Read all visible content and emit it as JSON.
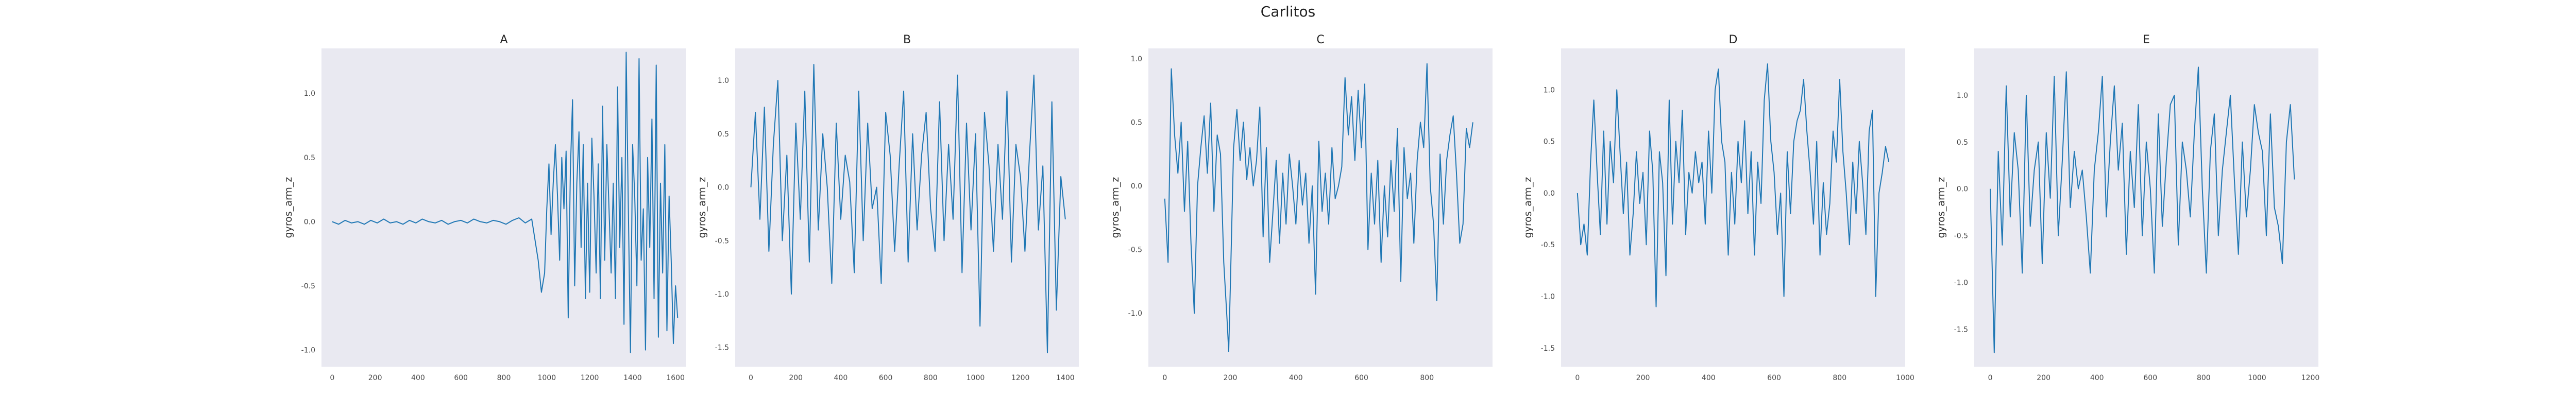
{
  "figure": {
    "title": "Carlitos",
    "colors": {
      "line": "#1f77b4",
      "plot_background": "#e9e9f1",
      "page_background": "#ffffff"
    }
  },
  "chart_data": [
    {
      "type": "line",
      "title": "A",
      "xlabel": "",
      "ylabel": "gyros_arm_z",
      "xlim": [
        -50,
        1650
      ],
      "ylim": [
        -1.13,
        1.35
      ],
      "xticks": [
        0,
        200,
        400,
        600,
        800,
        1000,
        1200,
        1400,
        1600
      ],
      "yticks": [
        -1.0,
        -0.5,
        0.0,
        0.5,
        1.0
      ],
      "grid": false,
      "series": [
        {
          "x": [
            0,
            30,
            60,
            90,
            120,
            150,
            180,
            210,
            240,
            270,
            300,
            330,
            360,
            390,
            420,
            450,
            480,
            510,
            540,
            570,
            600,
            630,
            660,
            690,
            720,
            750,
            780,
            810,
            840,
            870,
            900,
            930,
            960,
            975,
            990,
            1000,
            1010,
            1020,
            1030,
            1040,
            1050,
            1060,
            1070,
            1080,
            1090,
            1100,
            1110,
            1120,
            1130,
            1140,
            1150,
            1160,
            1170,
            1180,
            1190,
            1200,
            1210,
            1220,
            1230,
            1240,
            1250,
            1260,
            1270,
            1280,
            1290,
            1300,
            1310,
            1320,
            1330,
            1340,
            1350,
            1360,
            1370,
            1380,
            1390,
            1400,
            1410,
            1420,
            1430,
            1440,
            1450,
            1460,
            1470,
            1480,
            1490,
            1500,
            1510,
            1520,
            1530,
            1540,
            1550,
            1560,
            1570,
            1580,
            1590,
            1600,
            1610
          ],
          "y": [
            0.0,
            -0.02,
            0.01,
            -0.01,
            0.0,
            -0.02,
            0.01,
            -0.01,
            0.02,
            -0.01,
            0.0,
            -0.02,
            0.01,
            -0.01,
            0.02,
            0.0,
            -0.01,
            0.01,
            -0.02,
            0.0,
            0.01,
            -0.01,
            0.02,
            0.0,
            -0.01,
            0.01,
            0.0,
            -0.02,
            0.01,
            0.03,
            -0.01,
            0.02,
            -0.3,
            -0.55,
            -0.4,
            0.1,
            0.45,
            -0.1,
            0.3,
            0.6,
            0.2,
            -0.3,
            0.5,
            0.1,
            0.55,
            -0.75,
            0.4,
            0.95,
            -0.5,
            0.3,
            0.7,
            -0.2,
            0.6,
            -0.6,
            0.3,
            -0.55,
            0.65,
            0.2,
            -0.4,
            0.45,
            -0.6,
            0.9,
            -0.3,
            0.6,
            0.1,
            -0.4,
            0.3,
            -0.6,
            1.05,
            -0.2,
            0.5,
            -0.8,
            1.32,
            0.1,
            -1.02,
            0.6,
            0.2,
            -0.5,
            1.27,
            -0.3,
            0.1,
            -1.0,
            0.5,
            -0.2,
            0.8,
            -0.6,
            1.22,
            -0.9,
            0.3,
            -0.4,
            0.6,
            -0.85,
            0.2,
            -0.3,
            -0.95,
            -0.5,
            -0.75
          ]
        }
      ]
    },
    {
      "type": "line",
      "title": "B",
      "xlabel": "",
      "ylabel": "gyros_arm_z",
      "xlim": [
        -70,
        1460
      ],
      "ylim": [
        -1.68,
        1.3
      ],
      "xticks": [
        0,
        200,
        400,
        600,
        800,
        1000,
        1200,
        1400
      ],
      "yticks": [
        -1.5,
        -1.0,
        -0.5,
        0.0,
        0.5,
        1.0
      ],
      "grid": false,
      "series": [
        {
          "x": [
            0,
            20,
            40,
            60,
            80,
            100,
            120,
            140,
            160,
            180,
            200,
            220,
            240,
            260,
            280,
            300,
            320,
            340,
            360,
            380,
            400,
            420,
            440,
            460,
            480,
            500,
            520,
            540,
            560,
            580,
            600,
            620,
            640,
            660,
            680,
            700,
            720,
            740,
            760,
            780,
            800,
            820,
            840,
            860,
            880,
            900,
            920,
            940,
            960,
            980,
            1000,
            1020,
            1040,
            1060,
            1080,
            1100,
            1120,
            1140,
            1160,
            1180,
            1200,
            1220,
            1240,
            1260,
            1280,
            1300,
            1320,
            1340,
            1360,
            1380,
            1400
          ],
          "y": [
            0.0,
            0.7,
            -0.3,
            0.75,
            -0.6,
            0.4,
            1.0,
            -0.5,
            0.3,
            -1.0,
            0.6,
            -0.3,
            0.9,
            -0.7,
            1.15,
            -0.4,
            0.5,
            0.0,
            -0.9,
            0.6,
            -0.3,
            0.3,
            0.05,
            -0.8,
            0.9,
            -0.5,
            0.6,
            -0.2,
            0.0,
            -0.9,
            0.7,
            0.3,
            -0.6,
            0.2,
            0.9,
            -0.7,
            0.5,
            -0.4,
            0.3,
            0.7,
            -0.2,
            -0.6,
            0.8,
            -0.5,
            0.4,
            -0.3,
            1.05,
            -0.8,
            0.6,
            -0.4,
            0.5,
            -1.3,
            0.7,
            0.2,
            -0.6,
            0.4,
            -0.3,
            0.9,
            -0.7,
            0.4,
            0.1,
            -0.6,
            0.3,
            1.05,
            -0.4,
            0.2,
            -1.55,
            0.8,
            -1.15,
            0.1,
            -0.3
          ]
        }
      ]
    },
    {
      "type": "line",
      "title": "C",
      "xlabel": "",
      "ylabel": "gyros_arm_z",
      "xlim": [
        -50,
        1000
      ],
      "ylim": [
        -1.42,
        1.08
      ],
      "xticks": [
        0,
        200,
        400,
        600,
        800
      ],
      "yticks": [
        -1.0,
        -0.5,
        0.0,
        0.5,
        1.0
      ],
      "grid": false,
      "series": [
        {
          "x": [
            0,
            10,
            20,
            30,
            40,
            50,
            60,
            70,
            80,
            90,
            100,
            110,
            120,
            130,
            140,
            150,
            160,
            170,
            180,
            190,
            195,
            200,
            210,
            220,
            230,
            240,
            250,
            260,
            270,
            280,
            290,
            300,
            310,
            320,
            330,
            340,
            350,
            360,
            370,
            380,
            390,
            400,
            410,
            420,
            430,
            440,
            450,
            460,
            470,
            480,
            490,
            500,
            510,
            520,
            530,
            540,
            550,
            560,
            570,
            580,
            590,
            600,
            610,
            620,
            630,
            640,
            650,
            660,
            670,
            680,
            690,
            700,
            710,
            720,
            730,
            740,
            750,
            760,
            770,
            780,
            790,
            800,
            810,
            820,
            830,
            840,
            850,
            860,
            870,
            880,
            890,
            900,
            910,
            920,
            930,
            940
          ],
          "y": [
            -0.1,
            -0.6,
            0.92,
            0.4,
            0.1,
            0.5,
            -0.2,
            0.35,
            -0.45,
            -1.0,
            0.0,
            0.3,
            0.55,
            0.1,
            0.65,
            -0.2,
            0.4,
            0.25,
            -0.6,
            -1.05,
            -1.3,
            -0.8,
            0.3,
            0.6,
            0.2,
            0.5,
            0.05,
            0.3,
            0.0,
            0.2,
            0.62,
            -0.4,
            0.3,
            -0.6,
            -0.2,
            0.2,
            -0.45,
            0.1,
            -0.3,
            0.25,
            0.0,
            -0.3,
            0.2,
            -0.15,
            0.1,
            -0.45,
            0.0,
            -0.85,
            0.35,
            -0.2,
            0.1,
            -0.3,
            0.3,
            -0.1,
            0.0,
            0.15,
            0.85,
            0.4,
            0.7,
            0.2,
            0.75,
            0.3,
            0.8,
            -0.5,
            0.1,
            -0.3,
            0.2,
            -0.6,
            0.0,
            -0.4,
            0.2,
            -0.2,
            0.45,
            -0.75,
            0.3,
            -0.1,
            0.1,
            -0.45,
            0.2,
            0.5,
            0.3,
            0.96,
            0.0,
            -0.3,
            -0.9,
            0.25,
            -0.3,
            0.2,
            0.4,
            0.55,
            0.1,
            -0.45,
            -0.3,
            0.45,
            0.3,
            0.5
          ]
        }
      ]
    },
    {
      "type": "line",
      "title": "D",
      "xlabel": "",
      "ylabel": "gyros_arm_z",
      "xlim": [
        -50,
        1000
      ],
      "ylim": [
        -1.68,
        1.4
      ],
      "xticks": [
        0,
        200,
        400,
        600,
        800,
        1000
      ],
      "yticks": [
        -1.5,
        -1.0,
        -0.5,
        0.0,
        0.5,
        1.0
      ],
      "grid": false,
      "series": [
        {
          "x": [
            0,
            10,
            20,
            30,
            40,
            50,
            60,
            70,
            80,
            90,
            100,
            110,
            120,
            130,
            140,
            150,
            160,
            170,
            180,
            190,
            200,
            210,
            220,
            230,
            240,
            250,
            260,
            270,
            280,
            290,
            300,
            310,
            320,
            330,
            340,
            350,
            360,
            370,
            380,
            390,
            400,
            410,
            420,
            430,
            440,
            450,
            460,
            470,
            480,
            490,
            500,
            510,
            520,
            530,
            540,
            550,
            560,
            570,
            580,
            590,
            600,
            610,
            620,
            630,
            640,
            650,
            660,
            670,
            680,
            690,
            700,
            710,
            720,
            730,
            740,
            750,
            760,
            770,
            780,
            790,
            800,
            810,
            820,
            830,
            840,
            850,
            860,
            870,
            880,
            890,
            900,
            910,
            920,
            930,
            940,
            950
          ],
          "y": [
            0.0,
            -0.5,
            -0.3,
            -0.6,
            0.3,
            0.9,
            0.2,
            -0.4,
            0.6,
            -0.3,
            0.5,
            0.1,
            1.0,
            0.4,
            -0.2,
            0.3,
            -0.6,
            -0.2,
            0.4,
            -0.1,
            0.2,
            -0.5,
            0.6,
            0.2,
            -1.1,
            0.4,
            0.1,
            -0.8,
            0.9,
            -0.3,
            0.5,
            0.1,
            0.8,
            -0.4,
            0.2,
            0.0,
            0.4,
            0.1,
            0.3,
            -0.3,
            0.6,
            0.0,
            1.0,
            1.2,
            0.5,
            0.3,
            -0.6,
            0.2,
            -0.3,
            0.5,
            0.1,
            0.7,
            -0.2,
            0.4,
            -0.6,
            0.3,
            -0.1,
            0.9,
            1.25,
            0.5,
            0.2,
            -0.4,
            0.0,
            -1.0,
            0.4,
            -0.2,
            0.5,
            0.7,
            0.8,
            1.1,
            0.6,
            0.2,
            -0.3,
            0.5,
            -0.6,
            0.1,
            -0.4,
            -0.1,
            0.6,
            0.3,
            1.1,
            0.4,
            0.0,
            -0.5,
            0.3,
            -0.2,
            0.5,
            0.1,
            -0.4,
            0.6,
            0.8,
            -1.0,
            0.0,
            0.2,
            0.45,
            0.3
          ]
        }
      ]
    },
    {
      "type": "line",
      "title": "E",
      "xlabel": "",
      "ylabel": "gyros_arm_z",
      "xlim": [
        -60,
        1230
      ],
      "ylim": [
        -1.9,
        1.5
      ],
      "xticks": [
        0,
        200,
        400,
        600,
        800,
        1000,
        1200
      ],
      "yticks": [
        -1.5,
        -1.0,
        -0.5,
        0.0,
        0.5,
        1.0
      ],
      "grid": false,
      "series": [
        {
          "x": [
            0,
            15,
            30,
            45,
            60,
            75,
            90,
            105,
            120,
            135,
            150,
            165,
            180,
            195,
            210,
            225,
            240,
            255,
            270,
            285,
            300,
            315,
            330,
            345,
            360,
            375,
            390,
            405,
            420,
            435,
            450,
            465,
            480,
            495,
            510,
            525,
            540,
            555,
            570,
            585,
            600,
            615,
            630,
            645,
            660,
            675,
            690,
            705,
            720,
            735,
            750,
            765,
            780,
            795,
            810,
            825,
            840,
            855,
            870,
            885,
            900,
            915,
            930,
            945,
            960,
            975,
            990,
            1005,
            1020,
            1035,
            1050,
            1065,
            1080,
            1095,
            1110,
            1125,
            1140
          ],
          "y": [
            0.0,
            -1.75,
            0.4,
            -0.6,
            1.1,
            -0.3,
            0.6,
            0.2,
            -0.9,
            1.0,
            -0.4,
            0.2,
            0.5,
            -0.8,
            0.6,
            -0.1,
            1.2,
            -0.5,
            0.3,
            1.25,
            -0.2,
            0.4,
            0.0,
            0.2,
            -0.3,
            -0.9,
            0.2,
            0.6,
            1.2,
            -0.3,
            0.5,
            1.1,
            0.2,
            0.7,
            -0.7,
            0.4,
            -0.2,
            0.9,
            -0.5,
            0.5,
            0.0,
            -0.9,
            0.8,
            -0.4,
            0.3,
            0.9,
            1.0,
            -0.6,
            0.5,
            0.2,
            -0.3,
            0.6,
            1.3,
            0.0,
            -0.9,
            0.4,
            0.8,
            -0.5,
            0.2,
            0.6,
            1.0,
            0.1,
            -0.7,
            0.5,
            -0.3,
            0.2,
            0.9,
            0.6,
            0.4,
            -0.5,
            0.8,
            -0.2,
            -0.4,
            -0.8,
            0.5,
            0.9,
            0.1
          ]
        }
      ]
    }
  ]
}
